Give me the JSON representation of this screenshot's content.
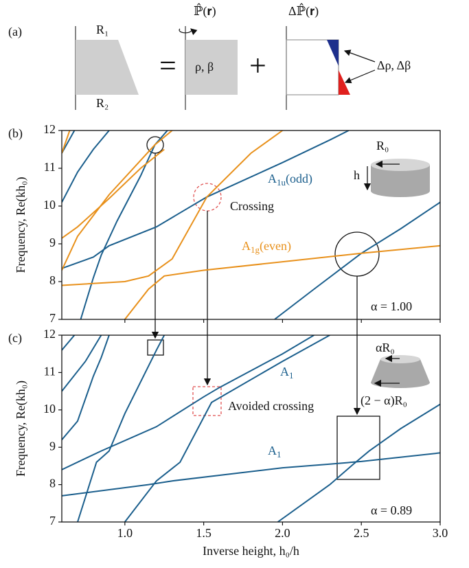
{
  "schematic": {
    "label": "(a)",
    "r1": "R₁",
    "r2": "R₂",
    "operator": "ℙ̂(𝐫)",
    "delta_operator": "Δℙ̂(𝐫)",
    "equals": "=",
    "plus": "+",
    "rho_beta": "ρ, β",
    "delta_rho_beta": "Δρ, Δβ"
  },
  "chart_data": [
    {
      "type": "line",
      "panel": "(b)",
      "ylabel": "Frequency, Re(kh₀)",
      "xlim": [
        0.6,
        3.0
      ],
      "ylim": [
        7,
        12
      ],
      "xticks": [
        1,
        1.5,
        2,
        2.5,
        3
      ],
      "yticks": [
        7,
        8,
        9,
        10,
        11,
        12
      ],
      "annotations": [
        {
          "text": "A",
          "subscript": "1u",
          "suffix": "(odd)",
          "color": "#1a5e8c"
        },
        {
          "text": "Crossing"
        },
        {
          "text": "A",
          "subscript": "1g",
          "suffix": "(even)",
          "color": "#e8901a"
        },
        {
          "text": "α = 1.00"
        },
        {
          "text": "R₀"
        },
        {
          "text": "h"
        }
      ],
      "series": [
        {
          "color": "#1a5e8c",
          "x": [
            0.6,
            0.8,
            0.9,
            1.2,
            1.52,
            2.0,
            2.3,
            2.42
          ],
          "values": [
            8.35,
            8.65,
            8.95,
            9.45,
            10.24,
            11.15,
            11.75,
            12
          ]
        },
        {
          "color": "#1a5e8c",
          "x": [
            0.72,
            0.8,
            0.85,
            0.95,
            1.1,
            1.19,
            1.27
          ],
          "values": [
            7.0,
            8.1,
            8.7,
            9.6,
            10.8,
            11.62,
            12
          ]
        },
        {
          "color": "#1a5e8c",
          "x": [
            0.6,
            0.7,
            0.8,
            0.9
          ],
          "values": [
            10.1,
            10.9,
            11.5,
            12
          ]
        },
        {
          "color": "#1a5e8c",
          "x": [
            0.6,
            0.68
          ],
          "values": [
            11.4,
            12
          ]
        },
        {
          "color": "#1a5e8c",
          "x": [
            1.95,
            2.2,
            2.5,
            2.75,
            3.0
          ],
          "values": [
            7.0,
            7.8,
            8.75,
            9.4,
            10.1
          ]
        },
        {
          "color": "#e8901a",
          "x": [
            0.6,
            1.0,
            1.15,
            1.3,
            1.52,
            1.8,
            2.0
          ],
          "values": [
            7.9,
            8.0,
            8.15,
            8.6,
            10.24,
            11.4,
            12
          ]
        },
        {
          "color": "#e8901a",
          "x": [
            1.0,
            1.15,
            1.25,
            1.5,
            2.5,
            3.0
          ],
          "values": [
            7.0,
            7.8,
            8.15,
            8.3,
            8.75,
            8.95
          ]
        },
        {
          "color": "#e8901a",
          "x": [
            0.6,
            0.7,
            0.9,
            1.19,
            1.3
          ],
          "values": [
            8.3,
            9.2,
            10.3,
            11.62,
            12
          ]
        },
        {
          "color": "#e8901a",
          "x": [
            0.6,
            0.7,
            0.9,
            1.1,
            1.25
          ],
          "values": [
            9.15,
            9.45,
            10.2,
            11.0,
            11.5
          ]
        },
        {
          "color": "#e8901a",
          "x": [
            0.6,
            0.65
          ],
          "values": [
            11.4,
            12
          ]
        }
      ]
    },
    {
      "type": "line",
      "panel": "(c)",
      "ylabel": "Frequency, Re(kh₀)",
      "xlabel": "Inverse height, h₀/h",
      "xlim": [
        0.6,
        3.0
      ],
      "ylim": [
        7,
        12
      ],
      "xticks": [
        {
          "value": 1,
          "label": "1.0"
        },
        {
          "value": 1.5,
          "label": "1.5"
        },
        {
          "value": 2,
          "label": "2.0"
        },
        {
          "value": 2.5,
          "label": "2.5"
        },
        {
          "value": 3,
          "label": "3.0"
        }
      ],
      "yticks": [
        7,
        8,
        9,
        10,
        11,
        12
      ],
      "annotations": [
        {
          "text": "A",
          "subscript": "1",
          "color": "#1a5e8c"
        },
        {
          "text": "Avoided crossing"
        },
        {
          "text": "A",
          "subscript": "1",
          "color": "#1a5e8c"
        },
        {
          "text": "α = 0.89"
        },
        {
          "text": "αR₀"
        },
        {
          "text": "(2 − α)R₀"
        }
      ],
      "series": [
        {
          "color": "#1a5e8c",
          "x": [
            0.6,
            1.15,
            1.3,
            2.0,
            2.3,
            2.5,
            3.0
          ],
          "values": [
            7.7,
            8.0,
            8.1,
            8.45,
            8.55,
            8.62,
            8.85
          ]
        },
        {
          "color": "#1a5e8c",
          "x": [
            1.0,
            1.2,
            1.35,
            1.55,
            2.0,
            2.3
          ],
          "values": [
            7.0,
            8.1,
            8.6,
            10.2,
            11.3,
            12
          ]
        },
        {
          "color": "#1a5e8c",
          "x": [
            0.6,
            0.85,
            1.2,
            1.5,
            1.6,
            2.0,
            2.2
          ],
          "values": [
            8.4,
            8.9,
            9.55,
            10.35,
            10.6,
            11.5,
            12
          ]
        },
        {
          "color": "#1a5e8c",
          "x": [
            1.97,
            2.3,
            2.45,
            2.55,
            2.75,
            3.0
          ],
          "values": [
            7.0,
            8.0,
            8.55,
            8.9,
            9.5,
            10.15
          ]
        },
        {
          "color": "#1a5e8c",
          "x": [
            0.7,
            0.82,
            0.9,
            1.0,
            1.2,
            1.25
          ],
          "values": [
            7.0,
            8.6,
            8.9,
            9.9,
            11.6,
            12
          ]
        },
        {
          "color": "#1a5e8c",
          "x": [
            0.6,
            0.7,
            0.8,
            0.85,
            0.9
          ],
          "values": [
            9.2,
            9.7,
            10.9,
            11.4,
            12
          ]
        },
        {
          "color": "#1a5e8c",
          "x": [
            0.6,
            0.75,
            0.85
          ],
          "values": [
            10.5,
            11.3,
            12
          ]
        },
        {
          "color": "#1a5e8c",
          "x": [
            0.6,
            0.68
          ],
          "values": [
            11.6,
            12
          ]
        }
      ]
    }
  ]
}
